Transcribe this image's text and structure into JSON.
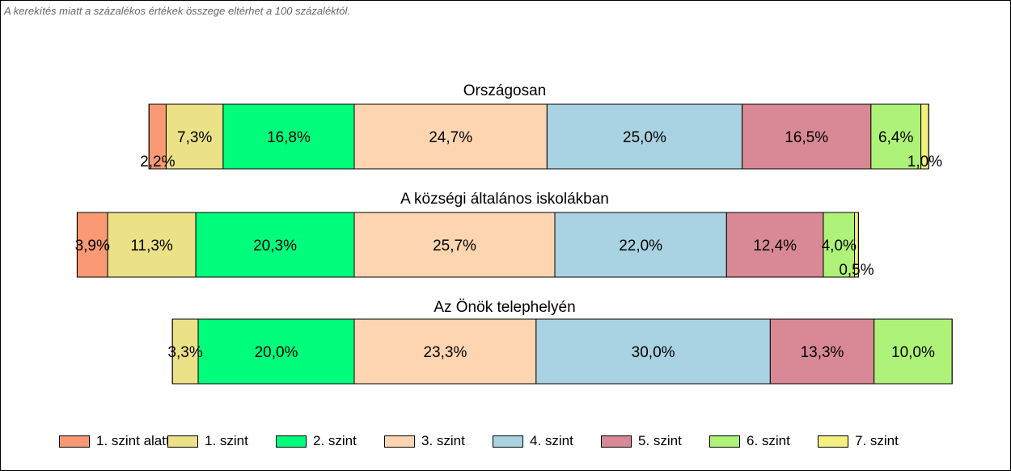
{
  "note": "A kerekítés miatt a  százalékos értékek összege eltérhet a 100 százaléktól.",
  "levels": [
    {
      "label": "1. szint alatti",
      "color": "#f99a74"
    },
    {
      "label": "1. szint",
      "color": "#ebe187"
    },
    {
      "label": "2. szint",
      "color": "#00fe7d"
    },
    {
      "label": "3. szint",
      "color": "#fed5b1"
    },
    {
      "label": "4. szint",
      "color": "#a9d3e2"
    },
    {
      "label": "5. szint",
      "color": "#d98896"
    },
    {
      "label": "6. szint",
      "color": "#aef27a"
    },
    {
      "label": "7. szint",
      "color": "#f4f07f"
    }
  ],
  "chart_data": {
    "type": "bar",
    "orientation": "horizontal",
    "stacked": true,
    "centered_on": "boundary between 2. szint and 3. szint",
    "unit": "%",
    "groups": [
      {
        "title": "Országosan",
        "values": [
          2.2,
          7.3,
          16.8,
          24.7,
          25.0,
          16.5,
          6.4,
          1.0
        ],
        "labels": [
          "2,2%",
          "7,3%",
          "16,8%",
          "24,7%",
          "25,0%",
          "16,5%",
          "6,4%",
          "1,0%"
        ]
      },
      {
        "title": "A községi általános iskolákban",
        "values": [
          3.9,
          11.3,
          20.3,
          25.7,
          22.0,
          12.4,
          4.0,
          0.5
        ],
        "labels": [
          "3,9%",
          "11,3%",
          "20,3%",
          "25,7%",
          "22,0%",
          "12,4%",
          "4,0%",
          "0,5%"
        ]
      },
      {
        "title": "Az Önök telephelyén",
        "values": [
          0,
          3.3,
          20.0,
          23.3,
          30.0,
          13.3,
          10.0,
          0
        ],
        "labels": [
          "",
          "3,3%",
          "20,0%",
          "23,3%",
          "30,0%",
          "13,3%",
          "10,0%",
          ""
        ]
      }
    ],
    "legend_position": "bottom"
  }
}
